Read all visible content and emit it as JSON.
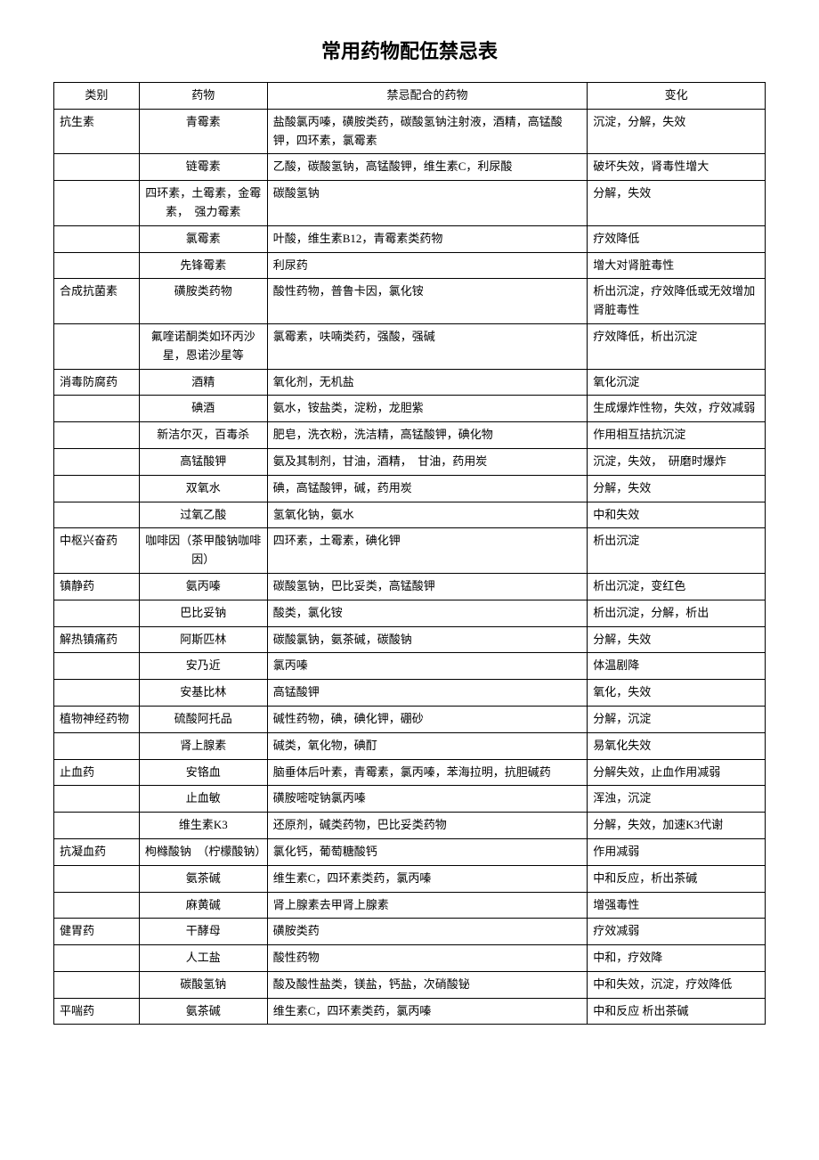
{
  "title": "常用药物配伍禁忌表",
  "headers": {
    "category": "类别",
    "drug": "药物",
    "contraindication": "禁忌配合的药物",
    "change": "变化"
  },
  "rows": [
    {
      "category": "抗生素",
      "drug": "青霉素",
      "contra": "盐酸氯丙嗪，磺胺类药，碳酸氢钠注射液，酒精，高锰酸钾，四环素，氯霉素",
      "change": "沉淀，分解，失效"
    },
    {
      "category": "",
      "drug": "链霉素",
      "contra": "乙酸，碳酸氢钠，高锰酸钾，维生素C，利尿酸",
      "change": "破坏失效，肾毒性增大"
    },
    {
      "category": "",
      "drug": "四环素，土霉素，金霉素，　强力霉素",
      "contra": "碳酸氢钠",
      "change": "分解，失效"
    },
    {
      "category": "",
      "drug": "氯霉素",
      "contra": "叶酸，维生素B12，青霉素类药物",
      "change": "疗效降低"
    },
    {
      "category": "",
      "drug": "先锋霉素",
      "contra": "利尿药",
      "change": "增大对肾脏毒性"
    },
    {
      "category": "合成抗菌素",
      "drug": "磺胺类药物",
      "contra": "酸性药物，普鲁卡因，氯化铵",
      "change": "析出沉淀，疗效降低或无效增加肾脏毒性"
    },
    {
      "category": "",
      "drug": "氟喹诺酮类如环丙沙星，恩诺沙星等",
      "contra": "氯霉素，呋喃类药，强酸，强碱",
      "change": "疗效降低，析出沉淀"
    },
    {
      "category": "消毒防腐药",
      "drug": "酒精",
      "contra": "氧化剂，无机盐",
      "change": "氧化沉淀"
    },
    {
      "category": "",
      "drug": "碘酒",
      "contra": "氨水，铵盐类，淀粉，龙胆紫",
      "change": "生成爆炸性物，失效，疗效减弱"
    },
    {
      "category": "",
      "drug": "新洁尔灭，百毒杀",
      "contra": "肥皂，洗衣粉，洗洁精，高锰酸钾，碘化物",
      "change": "作用相互拮抗沉淀"
    },
    {
      "category": "",
      "drug": "高锰酸钾",
      "contra": "氨及其制剂，甘油，酒精，　甘油，药用炭",
      "change": "沉淀，失效，　研磨时爆炸"
    },
    {
      "category": "",
      "drug": "双氧水",
      "contra": "碘，高锰酸钾，碱，药用炭",
      "change": "分解，失效"
    },
    {
      "category": "",
      "drug": "过氧乙酸",
      "contra": "氢氧化钠，氨水",
      "change": "中和失效"
    },
    {
      "category": "中枢兴奋药",
      "drug": "咖啡因（茶甲酸钠咖啡因）",
      "contra": "四环素，土霉素，碘化钾",
      "change": "析出沉淀"
    },
    {
      "category": "镇静药",
      "drug": "氨丙嗪",
      "contra": "碳酸氢钠，巴比妥类，高锰酸钾",
      "change": "析出沉淀，变红色"
    },
    {
      "category": "",
      "drug": "巴比妥钠",
      "contra": "酸类，氯化铵",
      "change": "析出沉淀，分解，析出"
    },
    {
      "category": "解热镇痛药",
      "drug": "阿斯匹林",
      "contra": "碳酸氯钠，氨茶碱，碳酸钠",
      "change": "分解，失效"
    },
    {
      "category": "",
      "drug": "安乃近",
      "contra": "氯丙嗪",
      "change": "体温剧降"
    },
    {
      "category": "",
      "drug": "安基比林",
      "contra": "高锰酸钾",
      "change": "氧化，失效"
    },
    {
      "category": "植物神经药物",
      "drug": "硫酸阿托品",
      "contra": "碱性药物，碘，碘化钾，硼砂",
      "change": "分解，沉淀"
    },
    {
      "category": "",
      "drug": "肾上腺素",
      "contra": "碱类，氧化物，碘酊",
      "change": "易氧化失效"
    },
    {
      "category": "止血药",
      "drug": "安铬血",
      "contra": "脑垂体后叶素，青霉素，氯丙嗪，苯海拉明，抗胆碱药",
      "change": "分解失效，止血作用减弱"
    },
    {
      "category": "",
      "drug": "止血敏",
      "contra": "磺胺嘧啶钠氯丙嗪",
      "change": "浑浊，沉淀"
    },
    {
      "category": "",
      "drug": "维生素K3",
      "contra": "还原剂，碱类药物，巴比妥类药物",
      "change": "分解，失效，加速K3代谢"
    },
    {
      "category": "抗凝血药",
      "drug": "枸橼酸钠　（柠檬酸钠）",
      "contra": "氯化钙，葡萄糖酸钙",
      "change": "作用减弱"
    },
    {
      "category": "",
      "drug": "氨茶碱",
      "contra": "维生素C，四环素类药，氯丙嗪",
      "change": "中和反应，析出茶碱"
    },
    {
      "category": "",
      "drug": "麻黄碱",
      "contra": "肾上腺素去甲肾上腺素",
      "change": "增强毒性"
    },
    {
      "category": "健胃药",
      "drug": "干酵母",
      "contra": "磺胺类药",
      "change": "疗效减弱"
    },
    {
      "category": "",
      "drug": "人工盐",
      "contra": "酸性药物",
      "change": "中和，疗效降"
    },
    {
      "category": "",
      "drug": "碳酸氢钠",
      "contra": "酸及酸性盐类，镁盐，钙盐，次硝酸铋",
      "change": "中和失效，沉淀，疗效降低"
    },
    {
      "category": "平喘药",
      "drug": "氨茶碱",
      "contra": "维生素C，四环素类药，氯丙嗪",
      "change": "中和反应 析出茶碱"
    }
  ]
}
